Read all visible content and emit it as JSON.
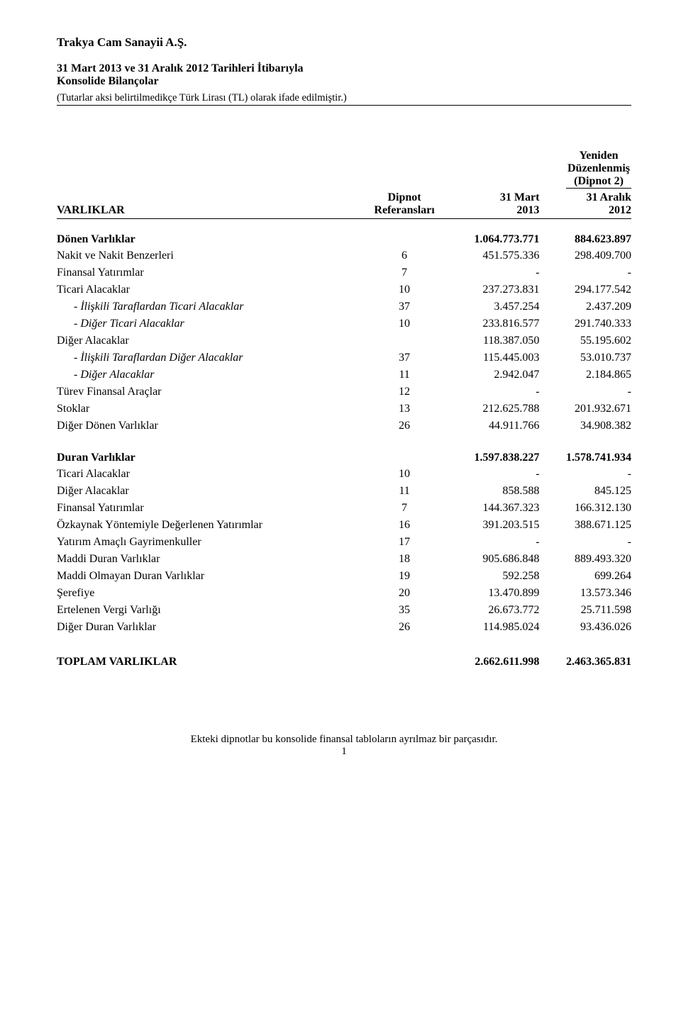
{
  "company_name": "Trakya Cam Sanayii A.Ş.",
  "subtitle_line1": "31 Mart 2013 ve 31 Aralık 2012 Tarihleri İtibarıyla",
  "subtitle_line2": "Konsolide Bilançolar",
  "note_line": "(Tutarlar aksi belirtilmedikçe Türk Lirası (TL) olarak ifade edilmiştir.)",
  "restated_l1": "Yeniden",
  "restated_l2": "Düzenlenmiş",
  "restated_l3": "(Dipnot 2)",
  "hdr_varliklar": "VARLIKLAR",
  "hdr_ref_l1": "Dipnot",
  "hdr_ref_l2": "Referansları",
  "hdr_c1_l1": "31 Mart",
  "hdr_c1_l2": "2013",
  "hdr_c2_l1": "31 Aralık",
  "hdr_c2_l2": "2012",
  "s1": {
    "header": "Dönen Varlıklar",
    "header_v1": "1.064.773.771",
    "header_v2": "884.623.897",
    "rows": [
      {
        "label": "Nakit ve Nakit Benzerleri",
        "ref": "6",
        "v1": "451.575.336",
        "v2": "298.409.700",
        "italic": false,
        "indent": false
      },
      {
        "label": "Finansal Yatırımlar",
        "ref": "7",
        "v1": "-",
        "v2": "-",
        "italic": false,
        "indent": false
      },
      {
        "label": "Ticari Alacaklar",
        "ref": "10",
        "v1": "237.273.831",
        "v2": "294.177.542",
        "italic": false,
        "indent": false
      },
      {
        "label": "- İlişkili Taraflardan Ticari Alacaklar",
        "ref": "37",
        "v1": "3.457.254",
        "v2": "2.437.209",
        "italic": true,
        "indent": true
      },
      {
        "label": "- Diğer Ticari Alacaklar",
        "ref": "10",
        "v1": "233.816.577",
        "v2": "291.740.333",
        "italic": true,
        "indent": true
      },
      {
        "label": "Diğer Alacaklar",
        "ref": "",
        "v1": "118.387.050",
        "v2": "55.195.602",
        "italic": false,
        "indent": false
      },
      {
        "label": "- İlişkili Taraflardan Diğer Alacaklar",
        "ref": "37",
        "v1": "115.445.003",
        "v2": "53.010.737",
        "italic": true,
        "indent": true
      },
      {
        "label": "- Diğer Alacaklar",
        "ref": "11",
        "v1": "2.942.047",
        "v2": "2.184.865",
        "italic": true,
        "indent": true
      },
      {
        "label": "Türev Finansal Araçlar",
        "ref": "12",
        "v1": "-",
        "v2": "-",
        "italic": false,
        "indent": false
      },
      {
        "label": "Stoklar",
        "ref": "13",
        "v1": "212.625.788",
        "v2": "201.932.671",
        "italic": false,
        "indent": false
      },
      {
        "label": "Diğer Dönen Varlıklar",
        "ref": "26",
        "v1": "44.911.766",
        "v2": "34.908.382",
        "italic": false,
        "indent": false
      }
    ]
  },
  "s2": {
    "header": "Duran Varlıklar",
    "header_v1": "1.597.838.227",
    "header_v2": "1.578.741.934",
    "rows": [
      {
        "label": "Ticari Alacaklar",
        "ref": "10",
        "v1": "-",
        "v2": "-",
        "italic": false,
        "indent": false
      },
      {
        "label": "Diğer Alacaklar",
        "ref": "11",
        "v1": "858.588",
        "v2": "845.125",
        "italic": false,
        "indent": false
      },
      {
        "label": "Finansal Yatırımlar",
        "ref": "7",
        "v1": "144.367.323",
        "v2": "166.312.130",
        "italic": false,
        "indent": false
      },
      {
        "label": "Özkaynak Yöntemiyle Değerlenen Yatırımlar",
        "ref": "16",
        "v1": "391.203.515",
        "v2": "388.671.125",
        "italic": false,
        "indent": false
      },
      {
        "label": "Yatırım Amaçlı Gayrimenkuller",
        "ref": "17",
        "v1": "-",
        "v2": "-",
        "italic": false,
        "indent": false
      },
      {
        "label": "Maddi Duran Varlıklar",
        "ref": "18",
        "v1": "905.686.848",
        "v2": "889.493.320",
        "italic": false,
        "indent": false
      },
      {
        "label": "Maddi Olmayan Duran Varlıklar",
        "ref": "19",
        "v1": "592.258",
        "v2": "699.264",
        "italic": false,
        "indent": false
      },
      {
        "label": "Şerefiye",
        "ref": "20",
        "v1": "13.470.899",
        "v2": "13.573.346",
        "italic": false,
        "indent": false
      },
      {
        "label": "Ertelenen Vergi Varlığı",
        "ref": "35",
        "v1": "26.673.772",
        "v2": "25.711.598",
        "italic": false,
        "indent": false
      },
      {
        "label": "Diğer Duran Varlıklar",
        "ref": "26",
        "v1": "114.985.024",
        "v2": "93.436.026",
        "italic": false,
        "indent": false
      }
    ]
  },
  "total": {
    "label": "TOPLAM VARLIKLAR",
    "v1": "2.662.611.998",
    "v2": "2.463.365.831"
  },
  "footer": "Ekteki dipnotlar bu konsolide finansal tabloların ayrılmaz bir parçasıdır.",
  "page_num": "1"
}
